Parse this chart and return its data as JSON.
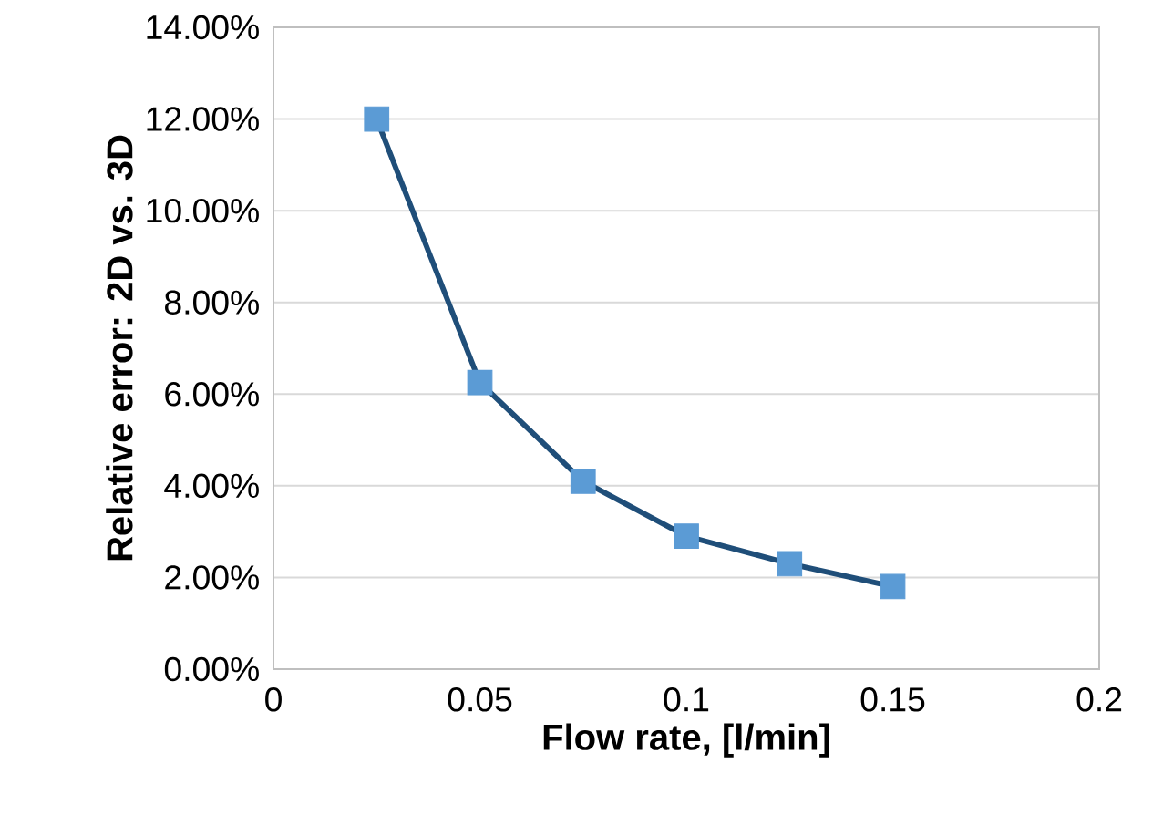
{
  "chart_data": {
    "type": "line",
    "xlabel": "Flow rate, [l/min]",
    "ylabel": "Relative error: 2D vs. 3D",
    "x": [
      0.025,
      0.05,
      0.075,
      0.1,
      0.125,
      0.15
    ],
    "series": [
      {
        "color": "#1f4e79",
        "colors": [
          "#5b9bd5",
          "#5b9bd5",
          "#5b9bd5",
          "#5b9bd5",
          "#5b9bd5",
          "#5b9bd5"
        ],
        "values": [
          12.0,
          6.25,
          4.1,
          2.9,
          2.3,
          1.8
        ]
      }
    ],
    "xlim": [
      0,
      0.2
    ],
    "xticks": [
      0,
      0.05,
      0.1,
      0.15,
      0.2
    ],
    "ylim": [
      0,
      14
    ],
    "yticks": [
      {
        "value": 0,
        "label": "0.00%"
      },
      {
        "value": 2,
        "label": "2.00%"
      },
      {
        "value": 4,
        "label": "4.00%"
      },
      {
        "value": 6,
        "label": "6.00%"
      },
      {
        "value": 8,
        "label": "8.00%"
      },
      {
        "value": 10,
        "label": "10.00%"
      },
      {
        "value": 12,
        "label": "12.00%"
      },
      {
        "value": 14,
        "label": "14.00%"
      }
    ],
    "grid": "y",
    "marker": "square",
    "line_style": "solid"
  }
}
